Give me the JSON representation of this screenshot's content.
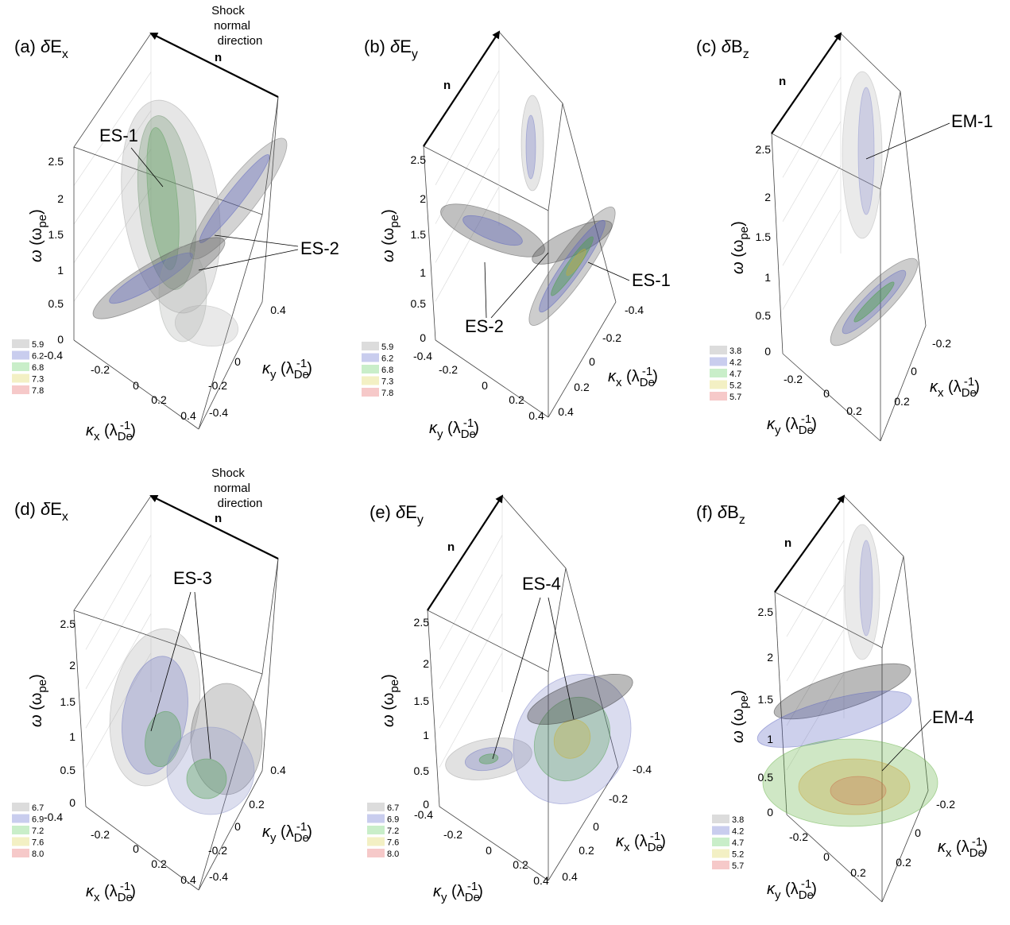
{
  "figure": {
    "shock_label": "Shock\nnormal\ndirection",
    "normal_symbol": "n"
  },
  "chart_data": [
    {
      "id": "a",
      "type": "volume-contour",
      "title": "(a) δEx",
      "zlabel": "ω (ωpe)",
      "xlabel": "κx (λDe-1)",
      "ylabel": "κy (λDe-1)",
      "z_ticks": [
        "0",
        "0.5",
        "1",
        "1.5",
        "2",
        "2.5"
      ],
      "x_ticks": [
        "-0.4",
        "-0.2",
        "0",
        "0.2",
        "0.4"
      ],
      "y_ticks": [
        "-0.4",
        "-0.2",
        "0",
        "0.4"
      ],
      "z_range": [
        0,
        2.5
      ],
      "legend": [
        "5.9",
        "6.2",
        "6.8",
        "7.3",
        "7.8"
      ],
      "legend_colors": [
        "#dcdcdc",
        "#c9cdee",
        "#c9eec9",
        "#f3f0c4",
        "#f6c9c9"
      ],
      "annotations": [
        "ES-1",
        "ES-2"
      ],
      "show_shock_label": true
    },
    {
      "id": "b",
      "type": "volume-contour",
      "title": "(b) δEy",
      "zlabel": "ω (ωpe)",
      "xlabel": "κy (λDe-1)",
      "ylabel": "κx (λDe-1)",
      "z_ticks": [
        "0",
        "0.5",
        "1",
        "1.5",
        "2",
        "2.5"
      ],
      "x_ticks": [
        "-0.4",
        "-0.2",
        "0",
        "0.2",
        "0.4"
      ],
      "y_ticks": [
        "-0.4",
        "-0.2",
        "0",
        "0.2",
        "0.4"
      ],
      "z_range": [
        0,
        2.5
      ],
      "legend": [
        "5.9",
        "6.2",
        "6.8",
        "7.3",
        "7.8"
      ],
      "legend_colors": [
        "#dcdcdc",
        "#c9cdee",
        "#c9eec9",
        "#f3f0c4",
        "#f6c9c9"
      ],
      "annotations": [
        "ES-1",
        "ES-2"
      ],
      "show_shock_label": false
    },
    {
      "id": "c",
      "type": "volume-contour",
      "title": "(c) δBz",
      "zlabel": "ω (ωpe)",
      "xlabel": "κy (λDe-1)",
      "ylabel": "κx (λDe-1)",
      "z_ticks": [
        "0",
        "0.5",
        "1",
        "1.5",
        "2",
        "2.5"
      ],
      "x_ticks": [
        "-0.2",
        "0",
        "0.2"
      ],
      "y_ticks": [
        "-0.2",
        "0",
        "0.2"
      ],
      "z_range": [
        0,
        2.5
      ],
      "legend": [
        "3.8",
        "4.2",
        "4.7",
        "5.2",
        "5.7"
      ],
      "legend_colors": [
        "#dcdcdc",
        "#c9cdee",
        "#c9eec9",
        "#f3f0c4",
        "#f6c9c9"
      ],
      "annotations": [
        "EM-1"
      ],
      "show_shock_label": false
    },
    {
      "id": "d",
      "type": "volume-contour",
      "title": "(d) δEx",
      "zlabel": "ω (ωpe)",
      "xlabel": "κx (λDe-1)",
      "ylabel": "κy (λDe-1)",
      "z_ticks": [
        "0",
        "0.5",
        "1",
        "1.5",
        "2",
        "2.5"
      ],
      "x_ticks": [
        "-0.4",
        "-0.2",
        "0",
        "0.2",
        "0.4"
      ],
      "y_ticks": [
        "-0.4",
        "-0.2",
        "0",
        "0.2",
        "0.4"
      ],
      "z_range": [
        0,
        2.5
      ],
      "legend": [
        "6.7",
        "6.9",
        "7.2",
        "7.6",
        "8.0"
      ],
      "legend_colors": [
        "#dcdcdc",
        "#c9cdee",
        "#c9eec9",
        "#f3f0c4",
        "#f6c9c9"
      ],
      "annotations": [
        "ES-3"
      ],
      "show_shock_label": true
    },
    {
      "id": "e",
      "type": "volume-contour",
      "title": "(e) δEy",
      "zlabel": "ω (ωpe)",
      "xlabel": "κy (λDe-1)",
      "ylabel": "κx (λDe-1)",
      "z_ticks": [
        "0",
        "0.5",
        "1",
        "1.5",
        "2",
        "2.5"
      ],
      "x_ticks": [
        "-0.4",
        "-0.2",
        "0",
        "0.2",
        "0.4"
      ],
      "y_ticks": [
        "-0.4",
        "-0.2",
        "0",
        "0.2",
        "0.4"
      ],
      "z_range": [
        0,
        2.5
      ],
      "legend": [
        "6.7",
        "6.9",
        "7.2",
        "7.6",
        "8.0"
      ],
      "legend_colors": [
        "#dcdcdc",
        "#c9cdee",
        "#c9eec9",
        "#f3f0c4",
        "#f6c9c9"
      ],
      "annotations": [
        "ES-4"
      ],
      "show_shock_label": false
    },
    {
      "id": "f",
      "type": "volume-contour",
      "title": "(f) δBz",
      "zlabel": "ω (ωpe)",
      "xlabel": "κy (λDe-1)",
      "ylabel": "κx (λDe-1)",
      "z_ticks": [
        "0",
        "0.5",
        "1",
        "1.5",
        "2",
        "2.5"
      ],
      "x_ticks": [
        "-0.2",
        "0",
        "0.2"
      ],
      "y_ticks": [
        "-0.2",
        "0",
        "0.2"
      ],
      "z_range": [
        0,
        2.5
      ],
      "legend": [
        "3.8",
        "4.2",
        "4.7",
        "5.2",
        "5.7"
      ],
      "legend_colors": [
        "#dcdcdc",
        "#c9cdee",
        "#c9eec9",
        "#f3f0c4",
        "#f6c9c9"
      ],
      "annotations": [
        "EM-4"
      ],
      "show_shock_label": false
    }
  ]
}
